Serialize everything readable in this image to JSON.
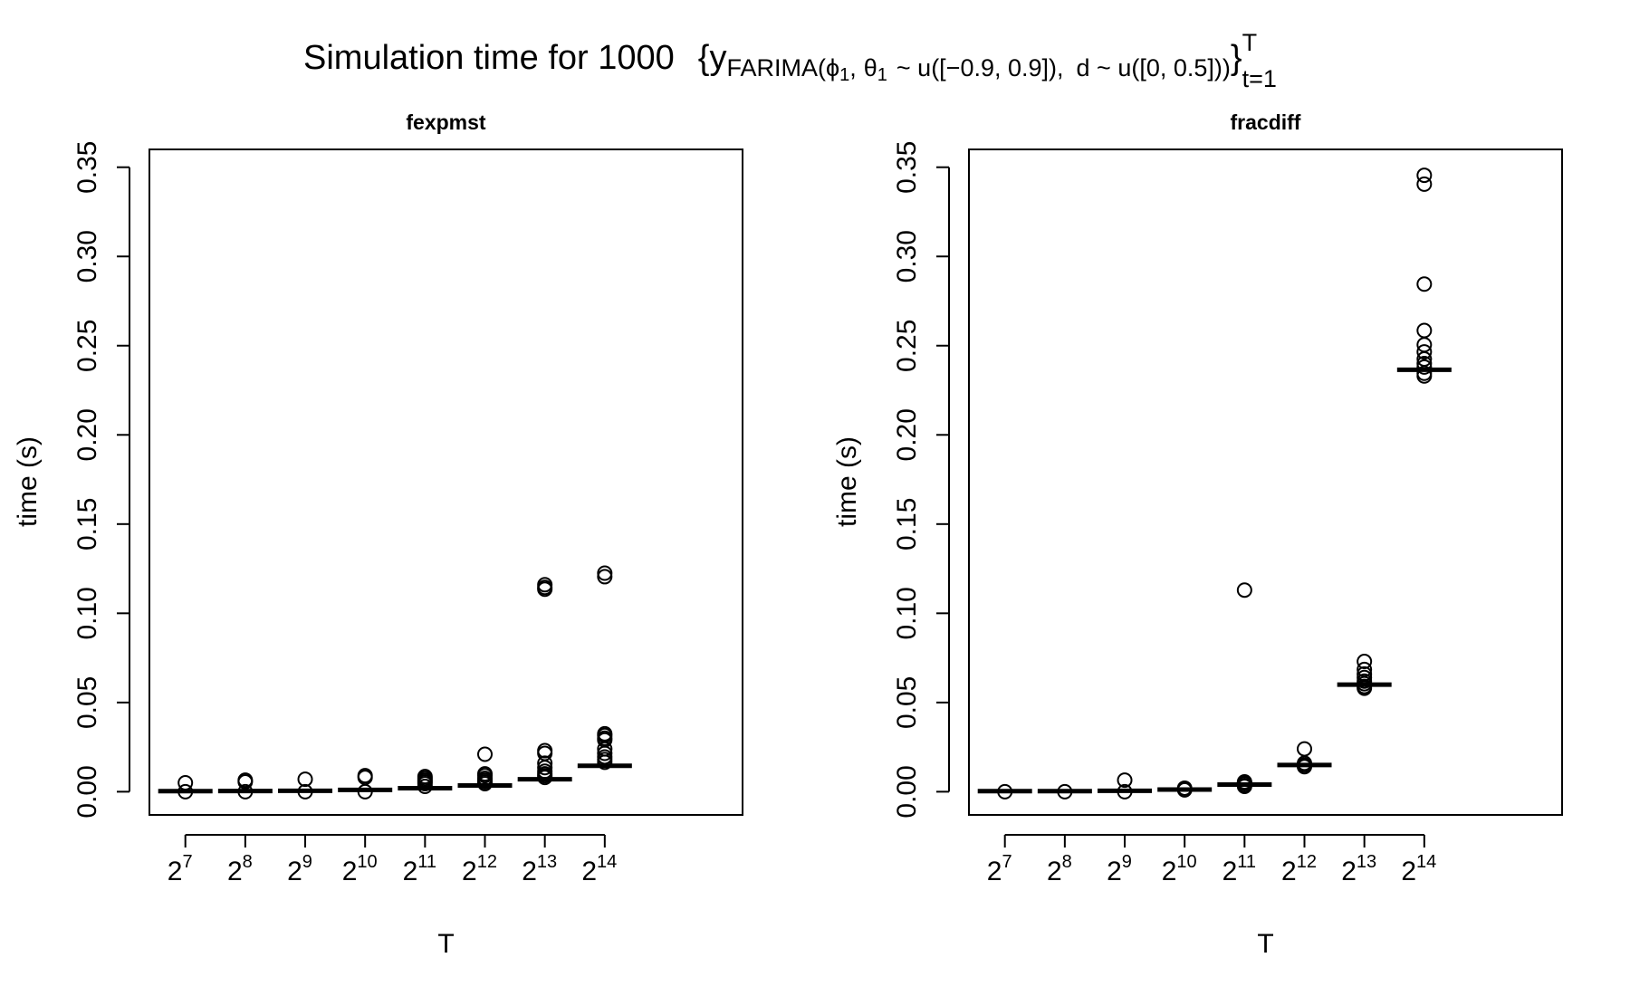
{
  "title": {
    "lead": "Simulation time for 1000",
    "brace_open": "{",
    "y": "y",
    "farima": "FARIMA",
    "paren_open": "(",
    "phi": "ϕ",
    "sub1": "1",
    "comma": ",",
    "theta": "θ",
    "sub2": "1",
    "dist1": "~ u([−0.9, 0.9]),",
    "dist2": "d ~ u([0, 0.5])",
    "paren_close": ")",
    "brace_close": "}",
    "sup": "T",
    "sub": "t=1"
  },
  "chart_data": [
    {
      "type": "box",
      "title": "fexpmst",
      "xlabel": "T",
      "ylabel": "time (s)",
      "ylim": [
        -0.013,
        0.36
      ],
      "yticks": [
        "0.00",
        "0.05",
        "0.10",
        "0.15",
        "0.20",
        "0.25",
        "0.30",
        "0.35"
      ],
      "categories": [
        {
          "base": "2",
          "exp": "7"
        },
        {
          "base": "2",
          "exp": "8"
        },
        {
          "base": "2",
          "exp": "9"
        },
        {
          "base": "2",
          "exp": "10"
        },
        {
          "base": "2",
          "exp": "11"
        },
        {
          "base": "2",
          "exp": "12"
        },
        {
          "base": "2",
          "exp": "13"
        },
        {
          "base": "2",
          "exp": "14"
        }
      ],
      "medians": [
        0.0003,
        0.0004,
        0.0005,
        0.001,
        0.002,
        0.0035,
        0.007,
        0.0145
      ],
      "outliers": [
        [
          0.005,
          0.0
        ],
        [
          0.0065,
          0.0055,
          0.0
        ],
        [
          0.007,
          0.0
        ],
        [
          0.009,
          0.008,
          0.0
        ],
        [
          0.0085,
          0.0075,
          0.0065,
          0.0055,
          0.0045,
          0.003
        ],
        [
          0.021,
          0.01,
          0.009,
          0.0075,
          0.0065,
          0.0055,
          0.0045
        ],
        [
          0.116,
          0.1145,
          0.1135,
          0.023,
          0.0215,
          0.016,
          0.0135,
          0.0115,
          0.01,
          0.009,
          0.008
        ],
        [
          0.1225,
          0.1205,
          0.0325,
          0.0315,
          0.03,
          0.029,
          0.024,
          0.0215,
          0.0195,
          0.018,
          0.0165
        ]
      ]
    },
    {
      "type": "box",
      "title": "fracdiff",
      "xlabel": "T",
      "ylabel": "time (s)",
      "ylim": [
        -0.013,
        0.36
      ],
      "yticks": [
        "0.00",
        "0.05",
        "0.10",
        "0.15",
        "0.20",
        "0.25",
        "0.30",
        "0.35"
      ],
      "categories": [
        {
          "base": "2",
          "exp": "7"
        },
        {
          "base": "2",
          "exp": "8"
        },
        {
          "base": "2",
          "exp": "9"
        },
        {
          "base": "2",
          "exp": "10"
        },
        {
          "base": "2",
          "exp": "11"
        },
        {
          "base": "2",
          "exp": "12"
        },
        {
          "base": "2",
          "exp": "13"
        },
        {
          "base": "2",
          "exp": "14"
        }
      ],
      "medians": [
        0.0003,
        0.0003,
        0.0005,
        0.0012,
        0.004,
        0.015,
        0.06,
        0.2365
      ],
      "outliers": [
        [
          0.0
        ],
        [
          0.0
        ],
        [
          0.0065,
          0.0
        ],
        [
          0.002,
          0.001
        ],
        [
          0.113,
          0.0055,
          0.005,
          0.0045,
          0.0035,
          0.003
        ],
        [
          0.024,
          0.016,
          0.015,
          0.014
        ],
        [
          0.073,
          0.0685,
          0.066,
          0.064,
          0.062,
          0.0605,
          0.059,
          0.058
        ],
        [
          0.3455,
          0.3405,
          0.2845,
          0.2585,
          0.2505,
          0.2465,
          0.2425,
          0.24,
          0.238,
          0.2345,
          0.233
        ]
      ]
    }
  ]
}
